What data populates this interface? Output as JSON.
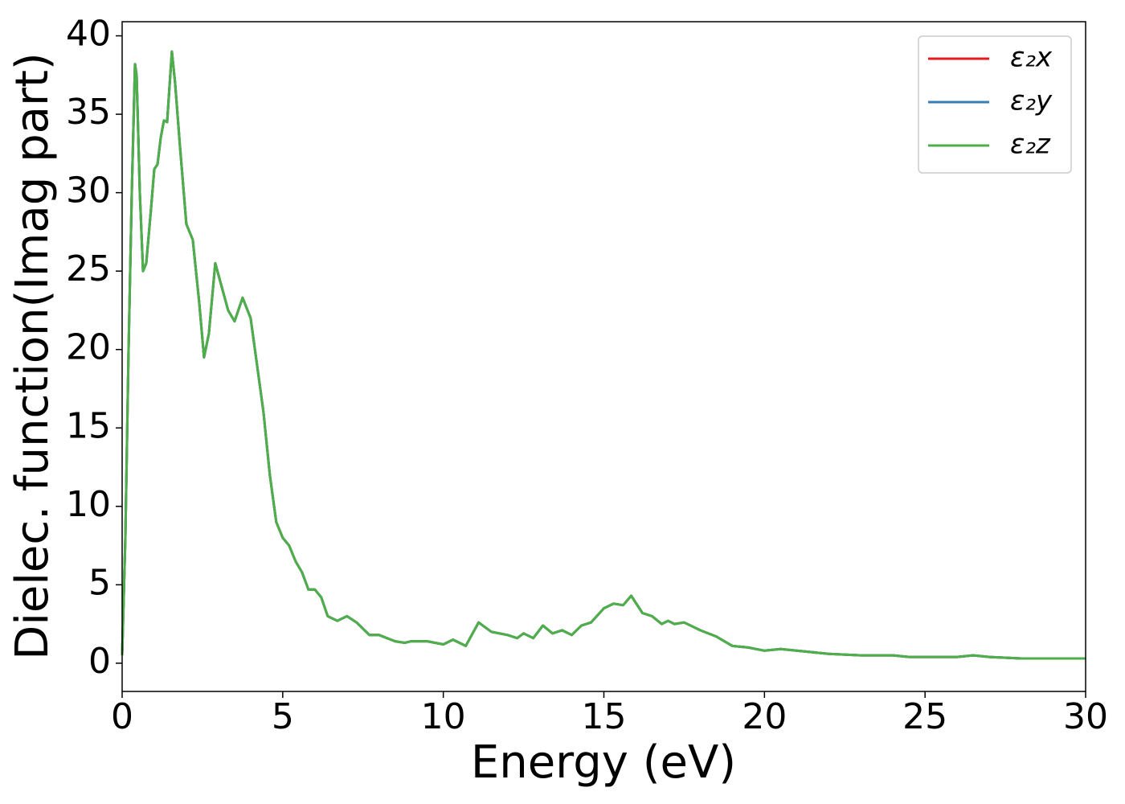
{
  "chart_data": {
    "type": "line",
    "xlabel": "Energy (eV)",
    "ylabel": "Dielec. function(Imag part)",
    "x": [
      0,
      0.1,
      0.2,
      0.3,
      0.4,
      0.45,
      0.55,
      0.65,
      0.75,
      0.9,
      1.0,
      1.1,
      1.2,
      1.3,
      1.4,
      1.5,
      1.55,
      1.65,
      1.8,
      2.0,
      2.2,
      2.4,
      2.55,
      2.7,
      2.9,
      3.1,
      3.3,
      3.5,
      3.75,
      4.0,
      4.2,
      4.4,
      4.6,
      4.8,
      5.0,
      5.2,
      5.4,
      5.6,
      5.8,
      6.0,
      6.2,
      6.4,
      6.7,
      7.0,
      7.3,
      7.7,
      8.0,
      8.5,
      8.8,
      9.0,
      9.5,
      10.0,
      10.3,
      10.7,
      11.1,
      11.5,
      12.0,
      12.3,
      12.5,
      12.8,
      13.1,
      13.4,
      13.7,
      14.0,
      14.3,
      14.6,
      15.0,
      15.3,
      15.6,
      15.85,
      16.2,
      16.5,
      16.8,
      17.0,
      17.2,
      17.5,
      18.0,
      18.5,
      19.0,
      19.5,
      20.0,
      20.5,
      21.0,
      22.0,
      23.0,
      24.0,
      24.5,
      25.0,
      26.0,
      26.5,
      27.0,
      28.0,
      29.0,
      30.0
    ],
    "series": [
      {
        "name": "ε₂x",
        "color": "#e41a1c",
        "values": [
          0.5,
          8,
          20,
          30,
          38.2,
          37.5,
          30,
          25,
          25.5,
          29,
          31.5,
          31.8,
          33.5,
          34.6,
          34.5,
          37.5,
          39,
          37,
          33,
          28,
          27,
          23,
          19.5,
          21,
          25.5,
          24,
          22.5,
          21.8,
          23.3,
          22,
          19,
          16,
          12,
          9,
          8,
          7.5,
          6.5,
          5.8,
          4.7,
          4.7,
          4.2,
          3.0,
          2.7,
          3.0,
          2.6,
          1.8,
          1.8,
          1.4,
          1.3,
          1.4,
          1.4,
          1.2,
          1.5,
          1.1,
          2.6,
          2.0,
          1.8,
          1.6,
          1.9,
          1.6,
          2.4,
          1.9,
          2.1,
          1.8,
          2.4,
          2.6,
          3.5,
          3.8,
          3.7,
          4.3,
          3.2,
          3.0,
          2.5,
          2.7,
          2.5,
          2.6,
          2.1,
          1.7,
          1.1,
          1.0,
          0.8,
          0.9,
          0.8,
          0.6,
          0.5,
          0.5,
          0.4,
          0.4,
          0.4,
          0.5,
          0.4,
          0.3,
          0.3,
          0.3
        ]
      },
      {
        "name": "ε₂y",
        "color": "#377eb8",
        "values": [
          0.5,
          8,
          20,
          30,
          38.2,
          37.5,
          30,
          25,
          25.5,
          29,
          31.5,
          31.8,
          33.5,
          34.6,
          34.5,
          37.5,
          39,
          37,
          33,
          28,
          27,
          23,
          19.5,
          21,
          25.5,
          24,
          22.5,
          21.8,
          23.3,
          22,
          19,
          16,
          12,
          9,
          8,
          7.5,
          6.5,
          5.8,
          4.7,
          4.7,
          4.2,
          3.0,
          2.7,
          3.0,
          2.6,
          1.8,
          1.8,
          1.4,
          1.3,
          1.4,
          1.4,
          1.2,
          1.5,
          1.1,
          2.6,
          2.0,
          1.8,
          1.6,
          1.9,
          1.6,
          2.4,
          1.9,
          2.1,
          1.8,
          2.4,
          2.6,
          3.5,
          3.8,
          3.7,
          4.3,
          3.2,
          3.0,
          2.5,
          2.7,
          2.5,
          2.6,
          2.1,
          1.7,
          1.1,
          1.0,
          0.8,
          0.9,
          0.8,
          0.6,
          0.5,
          0.5,
          0.4,
          0.4,
          0.4,
          0.5,
          0.4,
          0.3,
          0.3,
          0.3
        ]
      },
      {
        "name": "ε₂z",
        "color": "#4daf4a",
        "values": [
          0.5,
          8,
          20,
          30,
          38.2,
          37.5,
          30,
          25,
          25.5,
          29,
          31.5,
          31.8,
          33.5,
          34.6,
          34.5,
          37.5,
          39,
          37,
          33,
          28,
          27,
          23,
          19.5,
          21,
          25.5,
          24,
          22.5,
          21.8,
          23.3,
          22,
          19,
          16,
          12,
          9,
          8,
          7.5,
          6.5,
          5.8,
          4.7,
          4.7,
          4.2,
          3.0,
          2.7,
          3.0,
          2.6,
          1.8,
          1.8,
          1.4,
          1.3,
          1.4,
          1.4,
          1.2,
          1.5,
          1.1,
          2.6,
          2.0,
          1.8,
          1.6,
          1.9,
          1.6,
          2.4,
          1.9,
          2.1,
          1.8,
          2.4,
          2.6,
          3.5,
          3.8,
          3.7,
          4.3,
          3.2,
          3.0,
          2.5,
          2.7,
          2.5,
          2.6,
          2.1,
          1.7,
          1.1,
          1.0,
          0.8,
          0.9,
          0.8,
          0.6,
          0.5,
          0.5,
          0.4,
          0.4,
          0.4,
          0.5,
          0.4,
          0.3,
          0.3,
          0.3
        ]
      }
    ],
    "xlim": [
      0,
      30
    ],
    "xticks": [
      0,
      5,
      10,
      15,
      20,
      25,
      30
    ],
    "ylim": [
      -1.8,
      40.9
    ],
    "yticks": [
      0,
      5,
      10,
      15,
      20,
      25,
      30,
      35,
      40
    ],
    "legend": "upper right",
    "grid": false
  }
}
